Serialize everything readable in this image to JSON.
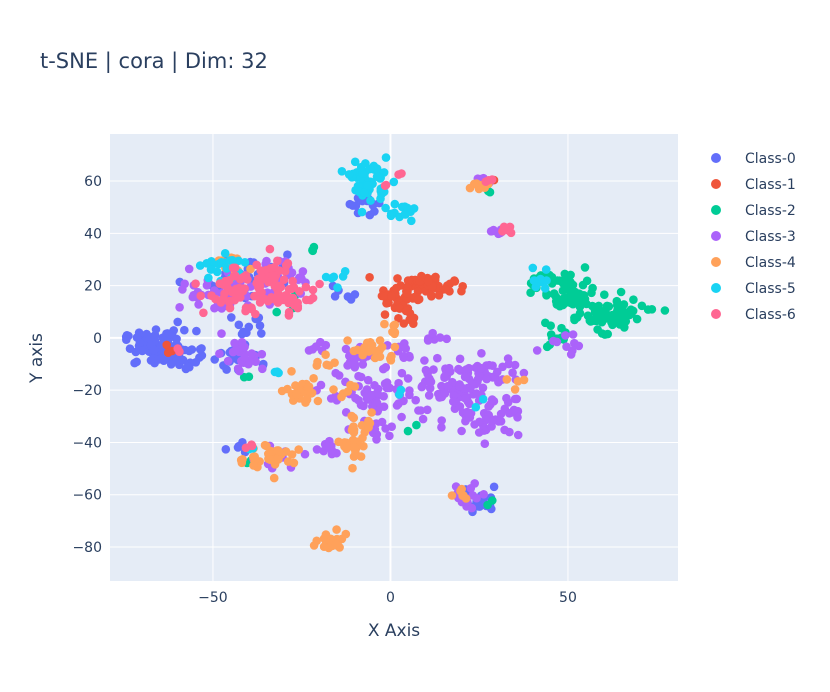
{
  "chart_data": {
    "type": "scatter",
    "title": "t-SNE | cora | Dim: 32",
    "xlabel": "X Axis",
    "ylabel": "Y axis",
    "xlim": [
      -79,
      81
    ],
    "ylim": [
      -93,
      78
    ],
    "x_ticks": [
      -50,
      0,
      50
    ],
    "x_tick_labels": [
      "−50",
      "0",
      "50"
    ],
    "y_ticks": [
      60,
      40,
      20,
      0,
      -20,
      -40,
      -60,
      -80
    ],
    "y_tick_labels": [
      "60",
      "40",
      "20",
      "0",
      "−20",
      "−40",
      "−60",
      "−80"
    ],
    "grid": true,
    "legend_position": "top-right",
    "series": [
      {
        "name": "Class-0",
        "color": "#636efa",
        "clusters": [
          [
            -65,
            -4,
            6,
            4,
            90
          ],
          [
            -60,
            -7,
            3,
            3,
            25
          ],
          [
            -40,
            22,
            7,
            5,
            25
          ],
          [
            -42,
            -7,
            5,
            3,
            25
          ],
          [
            -35,
            25,
            5,
            4,
            15
          ],
          [
            -40,
            5,
            4,
            3,
            10
          ],
          [
            -6,
            52,
            4,
            3,
            15
          ],
          [
            24,
            -60,
            3,
            3,
            10
          ],
          [
            25,
            -65,
            2,
            2,
            8
          ],
          [
            -44,
            -42,
            2,
            2,
            5
          ],
          [
            -15,
            18,
            3,
            2,
            6
          ]
        ]
      },
      {
        "name": "Class-1",
        "color": "#ef553b",
        "clusters": [
          [
            8,
            19,
            6,
            3,
            65
          ],
          [
            2,
            14,
            3,
            3,
            20
          ],
          [
            5,
            8,
            2,
            2,
            8
          ],
          [
            -62,
            -5,
            1,
            1,
            3
          ],
          [
            28,
            60,
            1,
            1,
            2
          ]
        ]
      },
      {
        "name": "Class-2",
        "color": "#00cc96",
        "clusters": [
          [
            50,
            17,
            5,
            5,
            55
          ],
          [
            60,
            8,
            7,
            3,
            50
          ],
          [
            66,
            10,
            3,
            3,
            20
          ],
          [
            46,
            0,
            3,
            3,
            15
          ],
          [
            42,
            23,
            2,
            2,
            10
          ],
          [
            -22,
            33,
            1,
            1,
            3
          ],
          [
            -40,
            -47,
            1,
            1,
            2
          ],
          [
            6,
            -35,
            1,
            1,
            2
          ],
          [
            28,
            -63,
            1,
            1,
            2
          ],
          [
            -30,
            14,
            2,
            2,
            4
          ],
          [
            -42,
            -15,
            1,
            1,
            2
          ],
          [
            28,
            55,
            1,
            1,
            2
          ]
        ]
      },
      {
        "name": "Class-3",
        "color": "#ab63fa",
        "clusters": [
          [
            -48,
            17,
            6,
            5,
            40
          ],
          [
            -30,
            23,
            4,
            4,
            25
          ],
          [
            -5,
            -22,
            8,
            6,
            60
          ],
          [
            18,
            -22,
            10,
            6,
            80
          ],
          [
            25,
            -13,
            7,
            4,
            40
          ],
          [
            28,
            -32,
            5,
            3,
            30
          ],
          [
            -40,
            -8,
            4,
            3,
            20
          ],
          [
            -10,
            -8,
            3,
            3,
            15
          ],
          [
            -18,
            -40,
            3,
            3,
            10
          ],
          [
            26,
            60,
            2,
            1,
            6
          ],
          [
            30,
            40,
            2,
            2,
            8
          ],
          [
            4,
            -5,
            3,
            3,
            10
          ],
          [
            -20,
            -4,
            2,
            2,
            6
          ],
          [
            -3,
            -35,
            3,
            4,
            10
          ],
          [
            22,
            -60,
            3,
            3,
            12
          ],
          [
            50,
            -2,
            4,
            3,
            10
          ],
          [
            -33,
            -45,
            3,
            3,
            8
          ],
          [
            12,
            0,
            3,
            2,
            6
          ],
          [
            -44,
            -2,
            2,
            2,
            5
          ]
        ]
      },
      {
        "name": "Class-4",
        "color": "#ffa15a",
        "clusters": [
          [
            -25,
            -20,
            3,
            3,
            25
          ],
          [
            -33,
            -45,
            4,
            3,
            30
          ],
          [
            -16,
            -78,
            3,
            2,
            25
          ],
          [
            -10,
            -40,
            2,
            5,
            30
          ],
          [
            -5,
            -5,
            4,
            3,
            20
          ],
          [
            -45,
            28,
            3,
            2,
            12
          ],
          [
            25,
            58,
            2,
            2,
            10
          ],
          [
            20,
            -60,
            3,
            2,
            6
          ],
          [
            -18,
            -10,
            2,
            2,
            6
          ],
          [
            -12,
            -20,
            2,
            2,
            6
          ],
          [
            35,
            -18,
            2,
            2,
            4
          ],
          [
            -5,
            -33,
            2,
            2,
            5
          ],
          [
            -42,
            -46,
            1,
            1,
            3
          ],
          [
            0,
            2,
            2,
            2,
            6
          ]
        ]
      },
      {
        "name": "Class-5",
        "color": "#19d3f3",
        "clusters": [
          [
            -6,
            60,
            3,
            5,
            55
          ],
          [
            4,
            48,
            3,
            2,
            15
          ],
          [
            -48,
            28,
            4,
            3,
            20
          ],
          [
            42,
            22,
            2,
            3,
            10
          ],
          [
            -15,
            22,
            2,
            2,
            6
          ],
          [
            -32,
            -13,
            1,
            1,
            3
          ],
          [
            3,
            -22,
            1,
            1,
            2
          ],
          [
            -40,
            -42,
            1,
            1,
            2
          ],
          [
            25,
            -25,
            1,
            1,
            2
          ]
        ]
      },
      {
        "name": "Class-6",
        "color": "#ff6692",
        "clusters": [
          [
            -42,
            18,
            6,
            5,
            60
          ],
          [
            -33,
            22,
            4,
            5,
            35
          ],
          [
            -28,
            13,
            3,
            3,
            15
          ],
          [
            33,
            41,
            1,
            1,
            6
          ],
          [
            -22,
            15,
            2,
            2,
            6
          ],
          [
            28,
            60,
            1,
            1,
            3
          ],
          [
            -40,
            -42,
            1,
            1,
            3
          ],
          [
            -60,
            -5,
            1,
            1,
            2
          ],
          [
            3,
            62,
            1,
            1,
            2
          ],
          [
            -2,
            58,
            1,
            1,
            2
          ]
        ]
      }
    ]
  }
}
